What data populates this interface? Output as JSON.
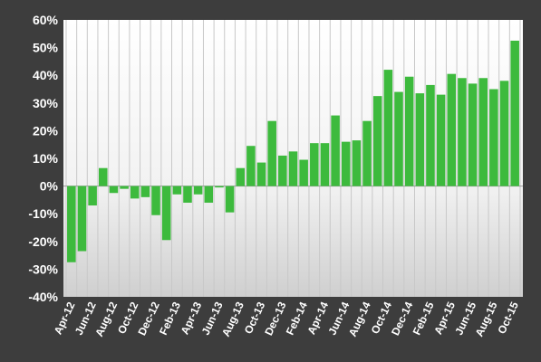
{
  "chart_data": {
    "type": "bar",
    "title": "",
    "xlabel": "",
    "ylabel": "",
    "ylim": [
      -40,
      60
    ],
    "ytick_values": [
      -40,
      -30,
      -20,
      -10,
      0,
      10,
      20,
      30,
      40,
      50,
      60
    ],
    "ytick_labels": [
      "-40%",
      "-30%",
      "-20%",
      "-10%",
      "0%",
      "10%",
      "20%",
      "30%",
      "40%",
      "50%",
      "60%"
    ],
    "grid": true,
    "legend": "none",
    "bar_color": "#3dba3d",
    "categories": [
      "Apr-12",
      "May-12",
      "Jun-12",
      "Jul-12",
      "Aug-12",
      "Sep-12",
      "Oct-12",
      "Nov-12",
      "Dec-12",
      "Jan-13",
      "Feb-13",
      "Mar-13",
      "Apr-13",
      "May-13",
      "Jun-13",
      "Jul-13",
      "Aug-13",
      "Sep-13",
      "Oct-13",
      "Nov-13",
      "Dec-13",
      "Jan-14",
      "Feb-14",
      "Mar-14",
      "Apr-14",
      "May-14",
      "Jun-14",
      "Jul-14",
      "Aug-14",
      "Sep-14",
      "Oct-14",
      "Nov-14",
      "Dec-14",
      "Jan-15",
      "Feb-15",
      "Mar-15",
      "Apr-15",
      "May-15",
      "Jun-15",
      "Jul-15",
      "Aug-15",
      "Sep-15",
      "Oct-15"
    ],
    "shown_tick_labels": [
      "Apr-12",
      "Jun-12",
      "Aug-12",
      "Oct-12",
      "Dec-12",
      "Feb-13",
      "Apr-13",
      "Jun-13",
      "Aug-13",
      "Oct-13",
      "Dec-13",
      "Feb-14",
      "Apr-14",
      "Jun-14",
      "Aug-14",
      "Oct-14",
      "Dec-14",
      "Feb-15",
      "Apr-15",
      "Jun-15",
      "Aug-15",
      "Oct-15"
    ],
    "values": [
      -27.5,
      -23.5,
      -7,
      6.5,
      -2.5,
      -1,
      -4.5,
      -4,
      -10.5,
      -19.5,
      -3,
      -6,
      -3,
      -6,
      -0.5,
      -9.5,
      6.5,
      14.5,
      8.5,
      23.5,
      11,
      12.5,
      9.5,
      15.5,
      15.5,
      25.5,
      16,
      16.5,
      23.5,
      32.5,
      42,
      34,
      39.5,
      33.5,
      36.5,
      33,
      40.5,
      39,
      37,
      39,
      35,
      38,
      52.5
    ]
  }
}
